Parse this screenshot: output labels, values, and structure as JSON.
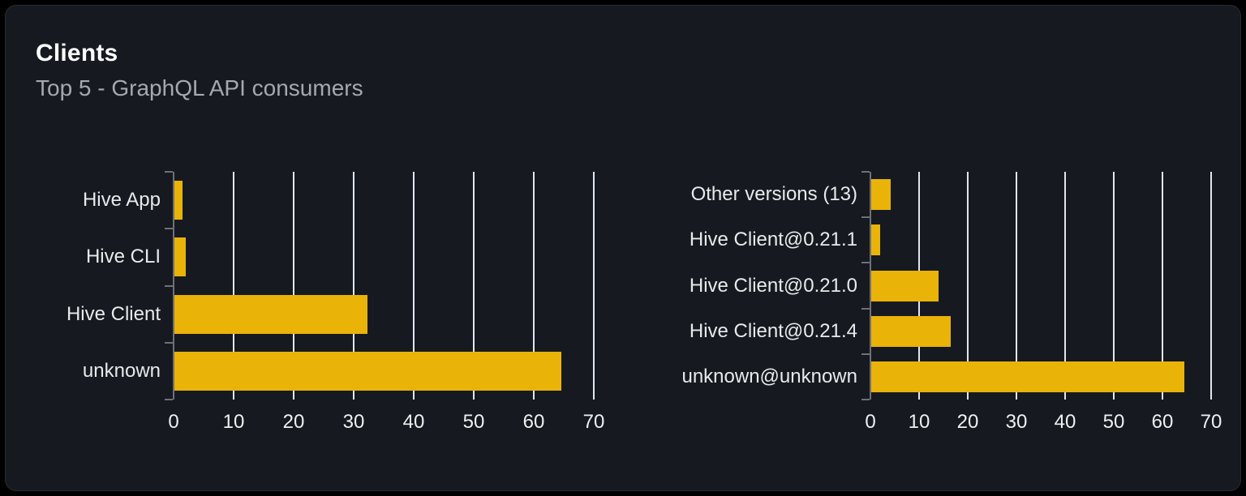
{
  "card": {
    "title": "Clients",
    "subtitle": "Top 5 - GraphQL API consumers"
  },
  "colors": {
    "page_bg": "#000000",
    "card_bg": "#161a20",
    "card_border": "#262b33",
    "title": "#ffffff",
    "subtitle": "#a4a9b0",
    "bar": "#eab308",
    "gridline": "#e0e6f1",
    "axis_line": "#6e7079",
    "category_label": "#e8eaec",
    "tick_label": "#eef0f2"
  },
  "chart_data": [
    {
      "type": "bar",
      "orientation": "horizontal",
      "title": "",
      "categories": [
        "Hive App",
        "Hive CLI",
        "Hive Client",
        "unknown"
      ],
      "values": [
        1.3,
        1.9,
        32.1,
        64.4
      ],
      "xlim": [
        0,
        70
      ],
      "xticks": [
        0,
        10,
        20,
        30,
        40,
        50,
        60,
        70
      ],
      "grid": true,
      "legend": false,
      "bar_color": "#eab308"
    },
    {
      "type": "bar",
      "orientation": "horizontal",
      "title": "",
      "categories": [
        "Other versions (13)",
        "Hive Client@0.21.1",
        "Hive Client@0.21.0",
        "Hive Client@0.21.4",
        "unknown@unknown"
      ],
      "values": [
        4.0,
        1.9,
        13.8,
        16.4,
        64.3
      ],
      "xlim": [
        0,
        70
      ],
      "xticks": [
        0,
        10,
        20,
        30,
        40,
        50,
        60,
        70
      ],
      "grid": true,
      "legend": false,
      "bar_color": "#eab308"
    }
  ]
}
